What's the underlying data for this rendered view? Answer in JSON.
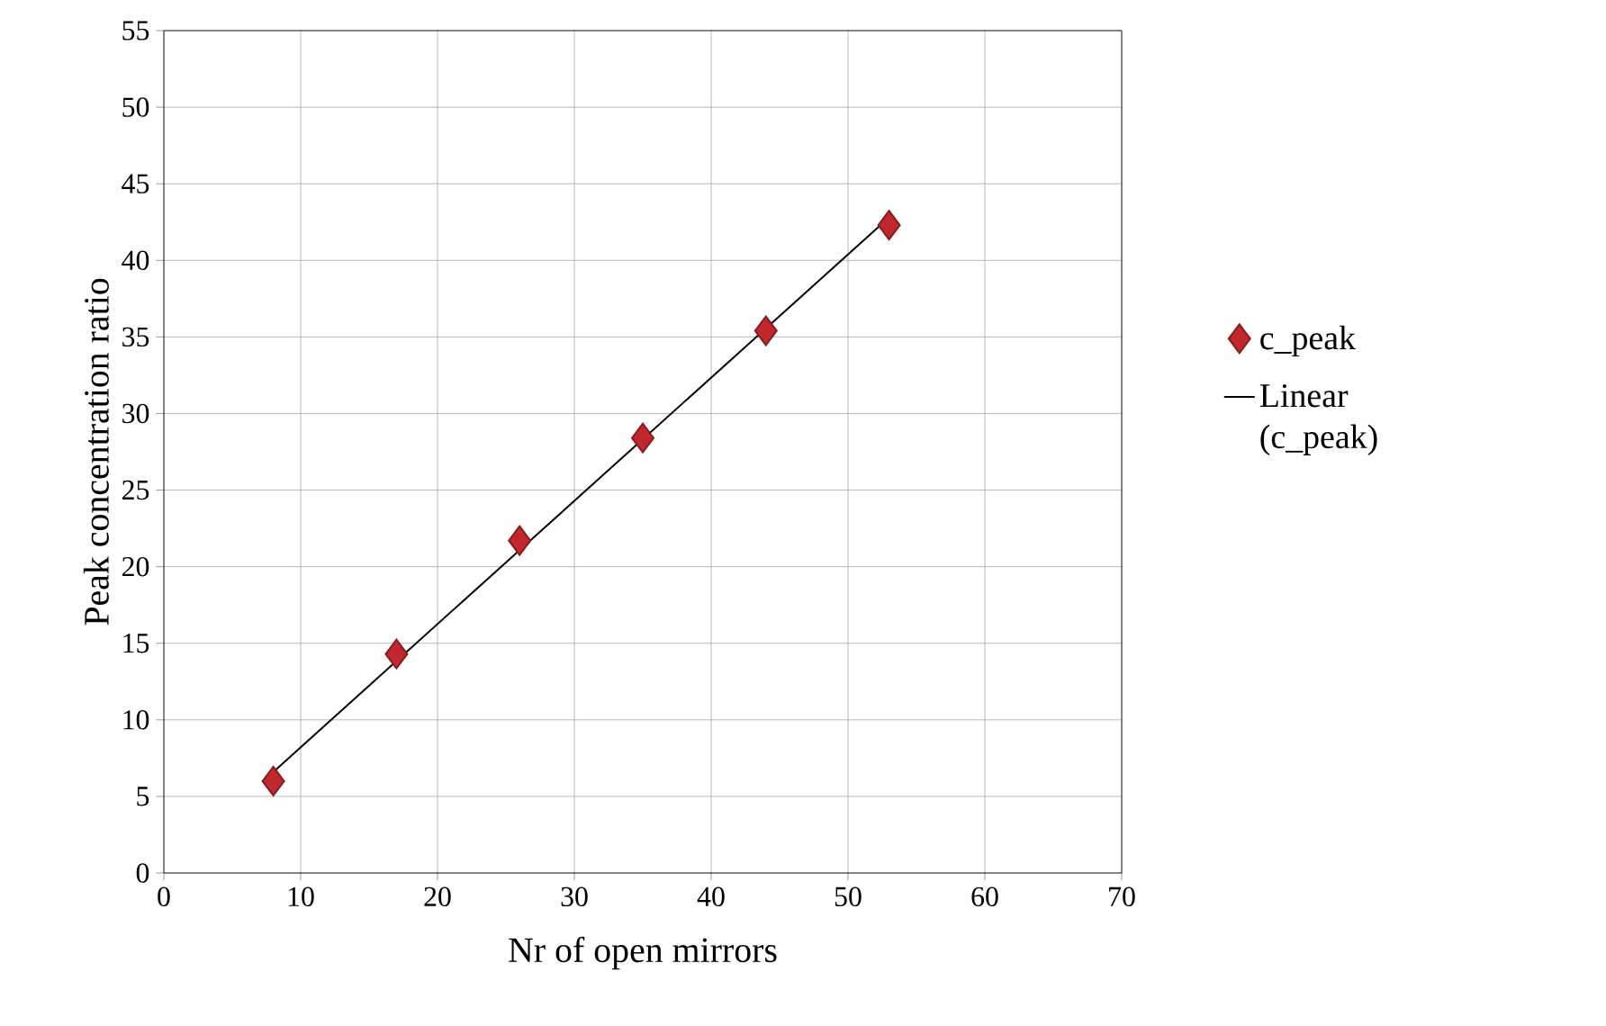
{
  "chart_data": {
    "type": "scatter",
    "xlabel": "Nr of open mirrors",
    "ylabel": "Peak concentration ratio",
    "xlim": [
      0,
      70
    ],
    "xticks": [
      0,
      10,
      20,
      30,
      40,
      50,
      60,
      70
    ],
    "ylim": [
      0,
      55
    ],
    "yticks": [
      0,
      5,
      10,
      15,
      20,
      25,
      30,
      35,
      40,
      45,
      50,
      55
    ],
    "grid": true,
    "legend": "right",
    "marker": "diamond",
    "series": [
      {
        "name": "c_peak",
        "color": "#c0282d",
        "x": [
          8,
          17,
          26,
          35,
          44,
          53
        ],
        "values": [
          6.0,
          14.3,
          21.7,
          28.4,
          35.4,
          42.3
        ]
      },
      {
        "name": "Linear (c_peak)",
        "type": "line",
        "color": "#000000",
        "marker": "none",
        "line_style": "solid",
        "x": [
          8,
          53
        ],
        "values": [
          6.6,
          42.8
        ]
      }
    ]
  }
}
